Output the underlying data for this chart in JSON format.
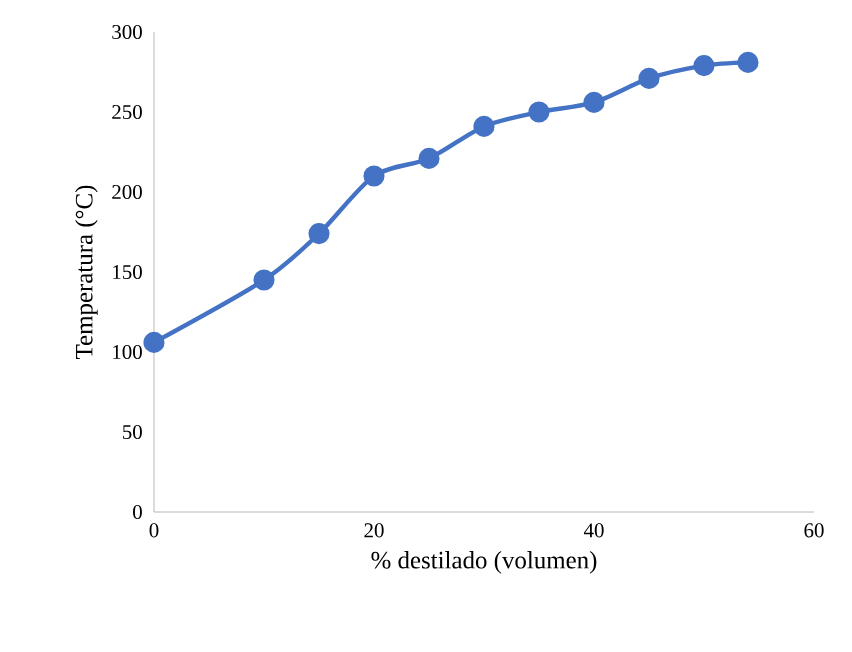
{
  "chart_data": {
    "type": "line",
    "xlabel": "% destilado (volumen)",
    "ylabel": "Temperatura (°C)",
    "x": [
      0,
      10,
      15,
      20,
      25,
      30,
      35,
      40,
      45,
      50,
      54
    ],
    "series": [
      {
        "color": "#4472c4",
        "values": [
          106,
          145,
          174,
          210,
          221,
          241,
          250,
          256,
          271,
          279,
          281
        ]
      }
    ],
    "xlim": [
      0,
      60
    ],
    "xticks": [
      0,
      20,
      40,
      60
    ],
    "ylim": [
      0,
      300
    ],
    "yticks": [
      0,
      50,
      100,
      150,
      200,
      250,
      300
    ],
    "marker": "circle",
    "line_style": "solid",
    "grid": false
  }
}
